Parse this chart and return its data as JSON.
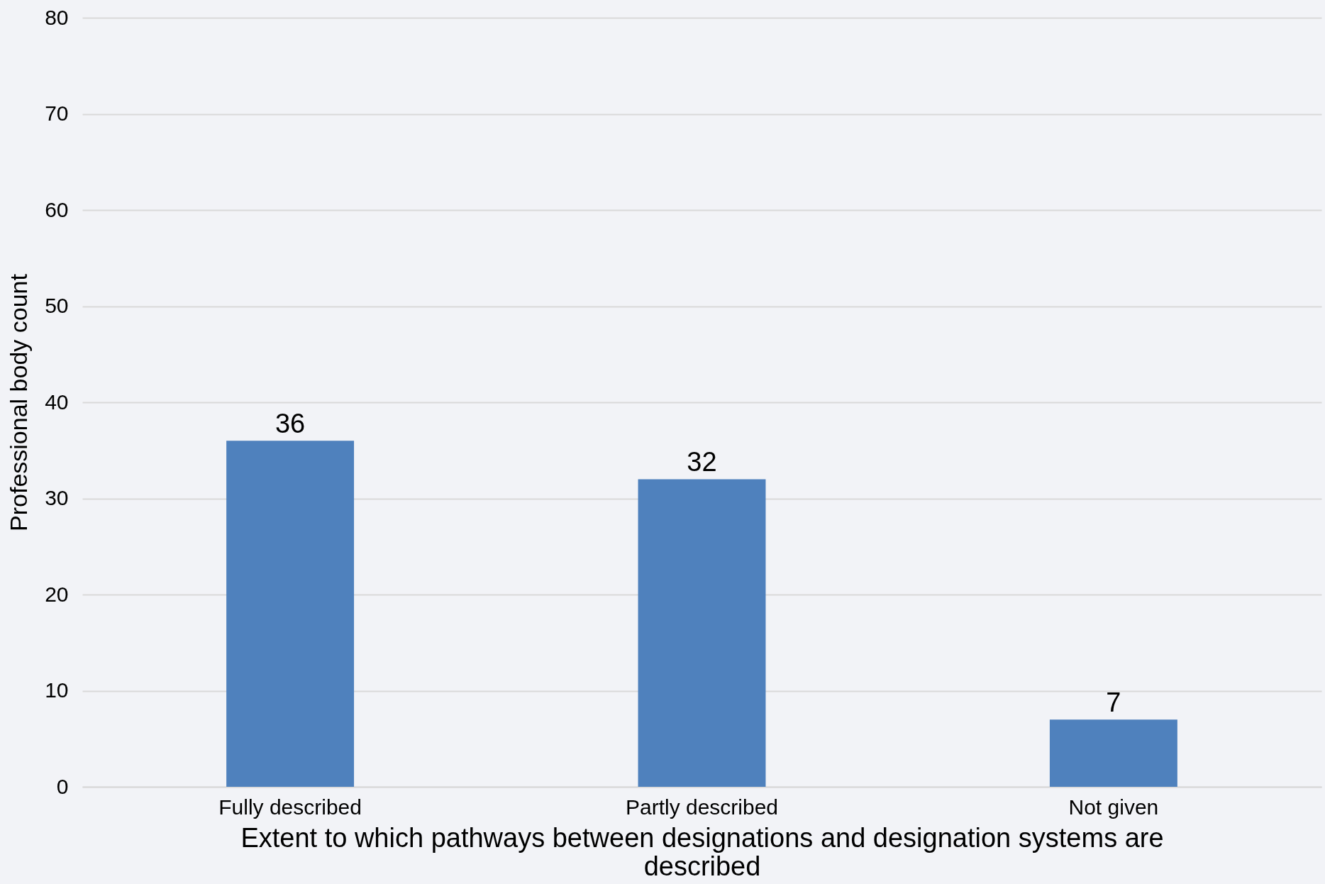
{
  "chart_data": {
    "type": "bar",
    "xlabel": "Extent to which pathways between designations and designation systems are described",
    "ylabel": "Professional body count",
    "categories": [
      "Fully described",
      "Partly described",
      "Not given"
    ],
    "values": [
      36,
      32,
      7
    ],
    "color": "#4f81bd",
    "ylim": [
      0,
      80
    ],
    "yticks": [
      0,
      10,
      20,
      30,
      40,
      50,
      60,
      70,
      80
    ],
    "grid": "y",
    "data_labels": true
  }
}
